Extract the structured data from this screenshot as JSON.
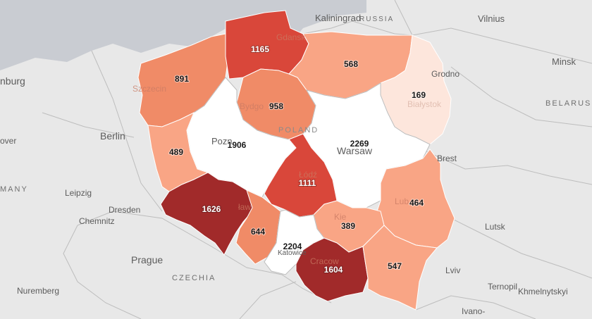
{
  "colors": {
    "background": "#e8e8e8",
    "sea": "#c9ccd2",
    "border": "#bdbdbd",
    "scale": [
      "#fde6dc",
      "#f9a585",
      "#f08b67",
      "#e86a52",
      "#d9473a",
      "#a12a2a"
    ]
  },
  "places": {
    "kaliningrad": "Kaliningrad",
    "russia": "RUSSIA",
    "vilnius": "Vilnius",
    "minsk": "Minsk",
    "grodno": "Grodno",
    "belarus": "BELARUS",
    "brandenburg": "nburg",
    "berlin": "Berlin",
    "hannover": "over",
    "germany": "MANY",
    "leipzig": "Leipzig",
    "dresden": "Dresden",
    "chemnitz": "Chemnitz",
    "prague": "Prague",
    "czechia": "CZECHIA",
    "nuremberg": "Nuremberg",
    "lutsk": "Lutsk",
    "lviv": "Lviv",
    "ternopil": "Ternopil",
    "khmelnytskyi": "Khmelnytskyi",
    "ivano": "Ivano-",
    "brest": "Brest",
    "poland": "POLAND",
    "warsaw": "Warsaw",
    "poznan": "Pozn",
    "szczecin": "Szczecin",
    "gdansk": "Gdansk",
    "bydgoszcz": "Bydgo",
    "bialystok": "Białystok",
    "lodz": "Łódź",
    "wroclaw": "ław",
    "katowice": "Katowice",
    "krakow": "Cracow",
    "lublin": "Lub",
    "kielce": "Kie",
    "map_edge": "k"
  },
  "regions": [
    {
      "name": "zachodniopomorskie",
      "value": 891
    },
    {
      "name": "pomorskie",
      "value": 1165
    },
    {
      "name": "warminsko-mazurskie",
      "value": 568
    },
    {
      "name": "podlaskie",
      "value": 169
    },
    {
      "name": "kujawsko-pomorskie",
      "value": 958
    },
    {
      "name": "wielkopolskie",
      "value": 1906
    },
    {
      "name": "mazowieckie",
      "value": 2269
    },
    {
      "name": "lubuskie",
      "value": 489
    },
    {
      "name": "lodzkie",
      "value": 1111
    },
    {
      "name": "lubelskie",
      "value": 464
    },
    {
      "name": "dolnoslaskie",
      "value": 1626
    },
    {
      "name": "opolskie",
      "value": 644
    },
    {
      "name": "swietokrzyskie",
      "value": 389
    },
    {
      "name": "slaskie",
      "value": 2204
    },
    {
      "name": "malopolskie",
      "value": 1604
    },
    {
      "name": "podkarpackie",
      "value": 547
    }
  ]
}
